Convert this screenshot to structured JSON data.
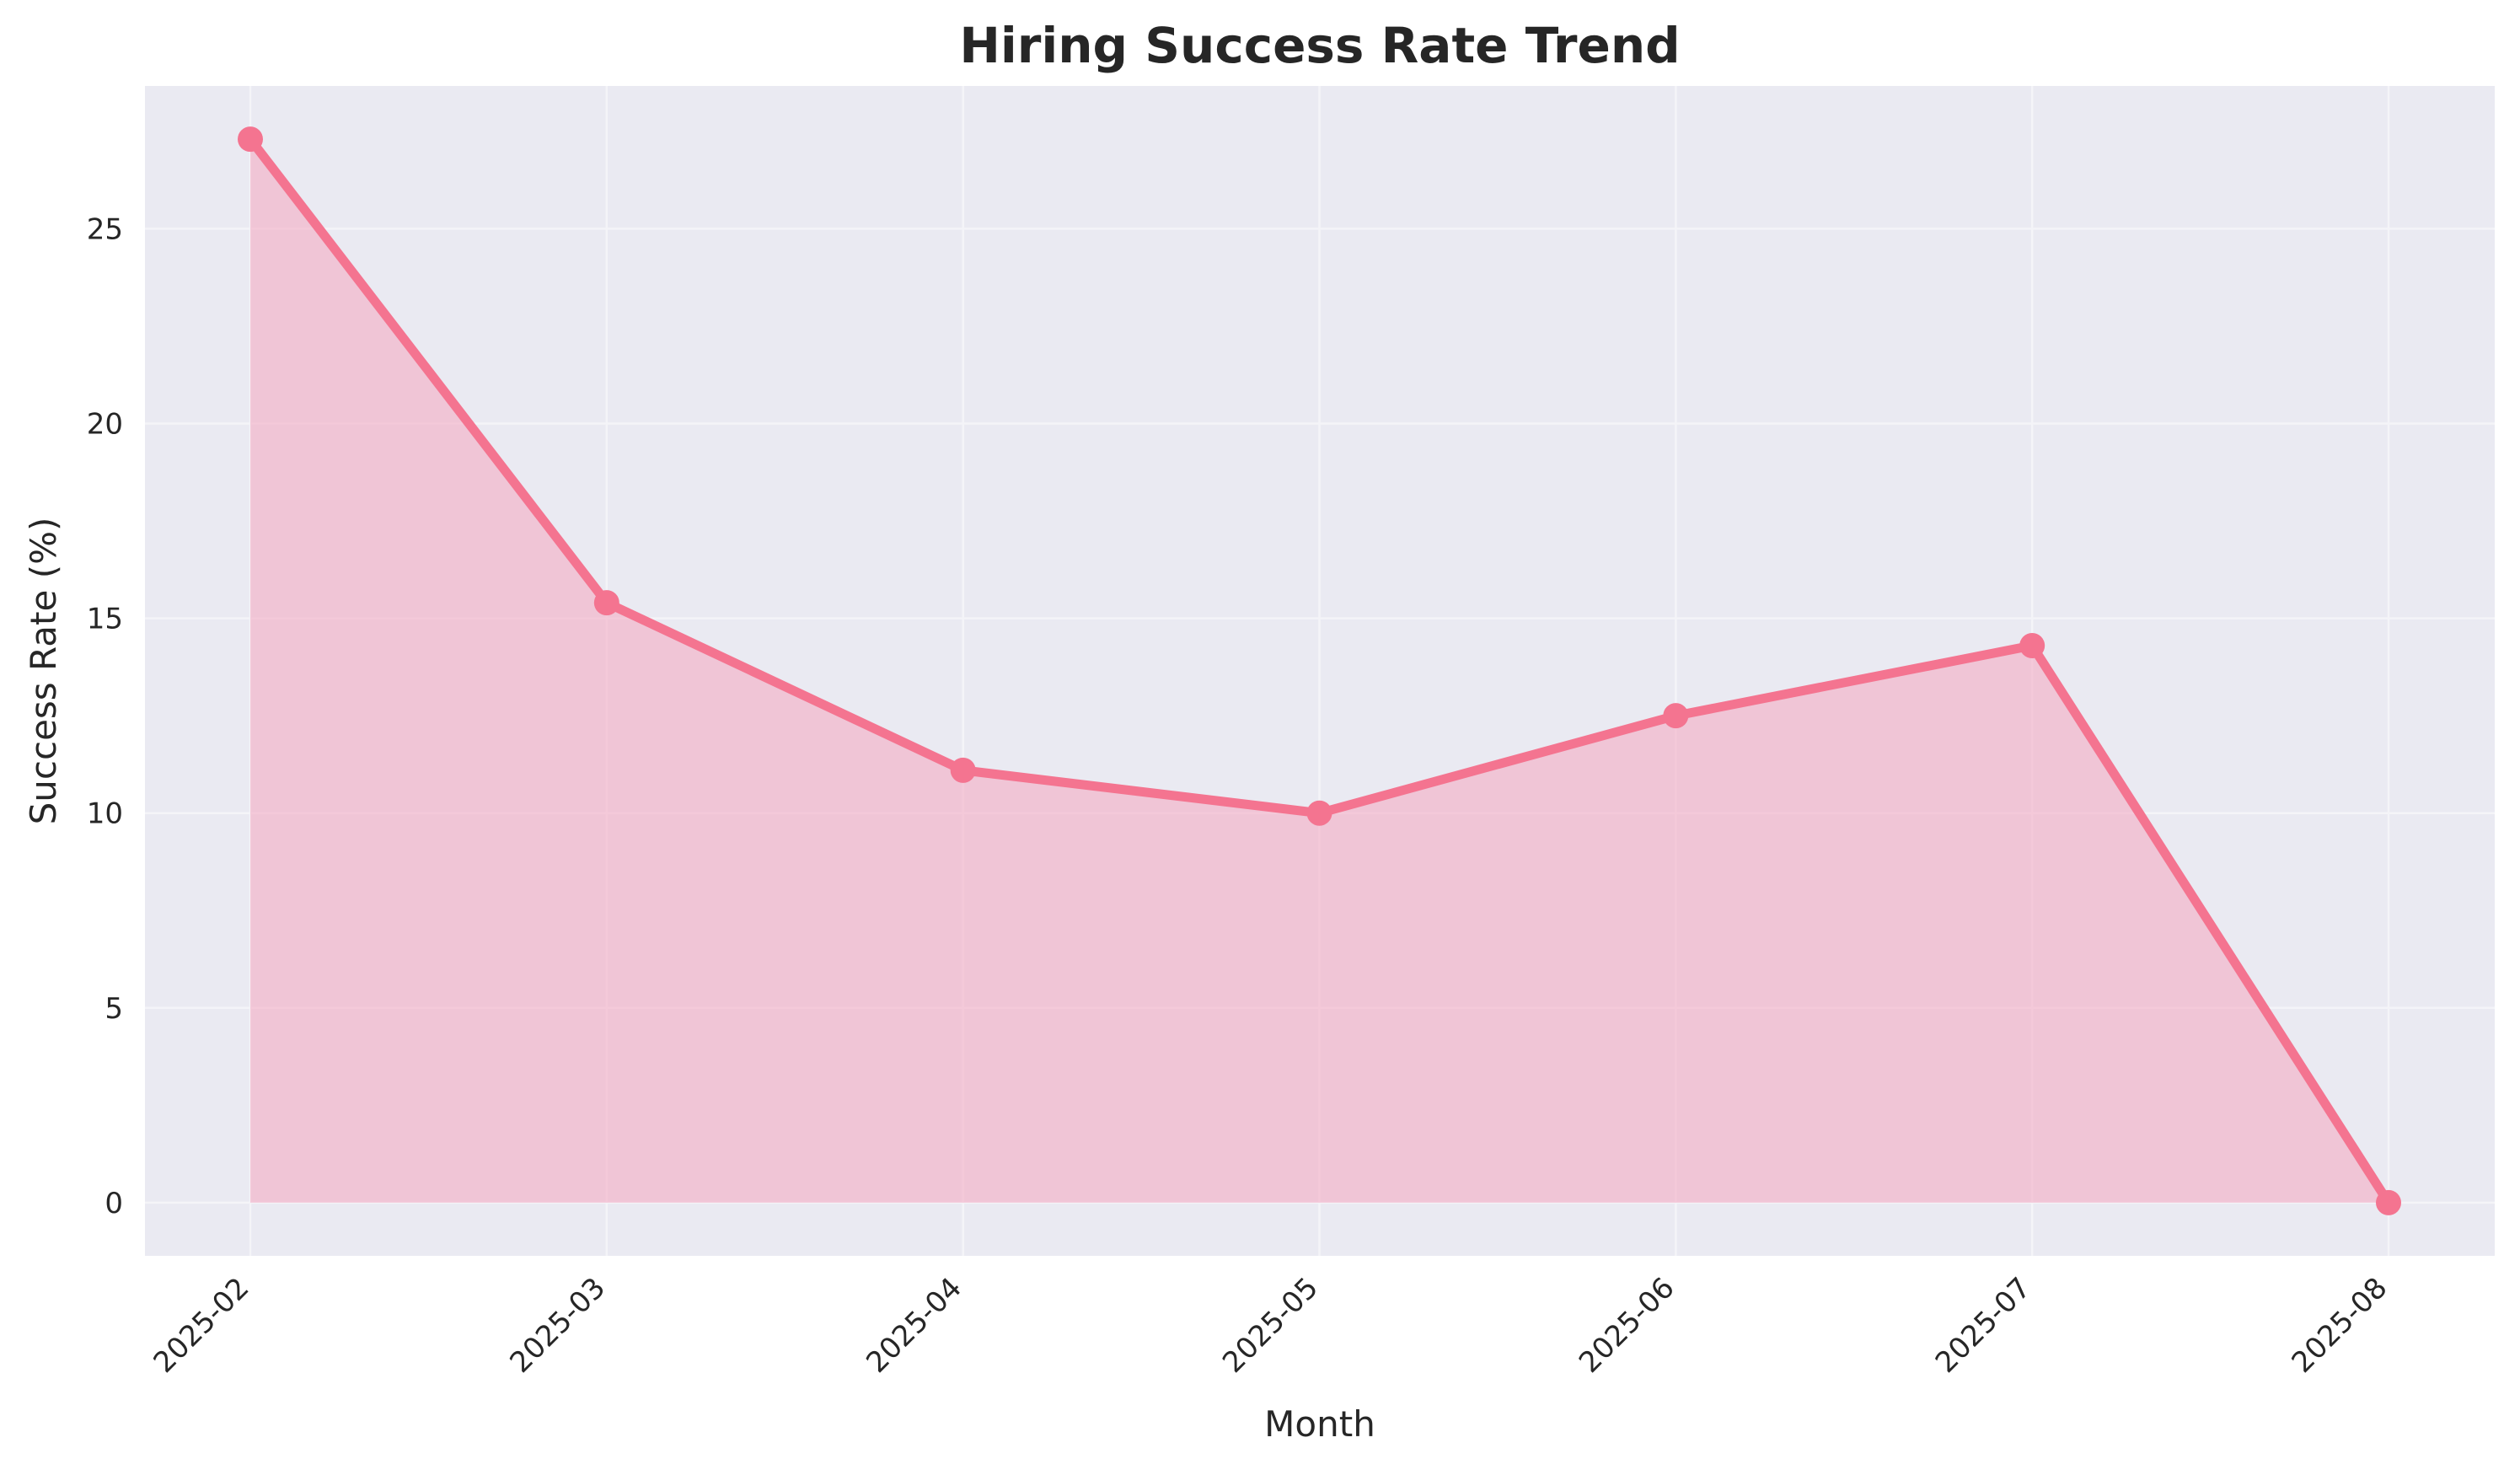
{
  "chart_data": {
    "type": "area",
    "title": "Hiring Success Rate Trend",
    "xlabel": "Month",
    "ylabel": "Success Rate (%)",
    "categories": [
      "2025-02",
      "2025-03",
      "2025-04",
      "2025-05",
      "2025-06",
      "2025-07",
      "2025-08"
    ],
    "series": [
      {
        "values": [
          27.3,
          15.4,
          11.1,
          10.0,
          12.5,
          14.3,
          0.0
        ]
      }
    ],
    "ylim": [
      -1.365,
      28.665
    ],
    "yticks": [
      0,
      5,
      10,
      15,
      20,
      25
    ],
    "grid": true,
    "legend": "none",
    "colors": {
      "line": "#f47490",
      "fill": "#f4a6bf",
      "plot_background": "#eaeaf2",
      "grid": "#f4f4f8"
    }
  }
}
